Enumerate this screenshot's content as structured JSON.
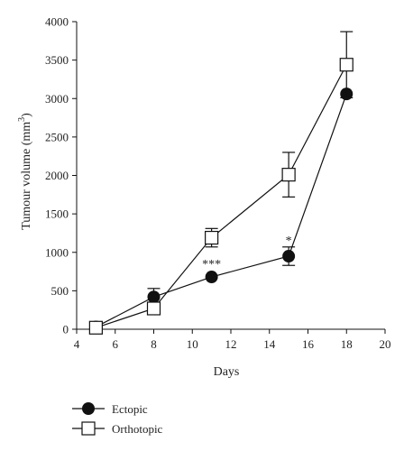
{
  "chart_data": {
    "type": "line",
    "xlabel": "Days",
    "ylabel_main": "Tumour volume (mm",
    "ylabel_sup": "3",
    "ylabel_close": ")",
    "xlim": [
      4,
      20
    ],
    "ylim": [
      0,
      4000
    ],
    "xticks": [
      4,
      6,
      8,
      10,
      12,
      14,
      16,
      18,
      20
    ],
    "yticks": [
      0,
      500,
      1000,
      1500,
      2000,
      2500,
      3000,
      3500,
      4000
    ],
    "grid": false,
    "legend_position": "bottom-left",
    "series": [
      {
        "name": "Ectopic",
        "marker": "filled-circle",
        "color": "#111111",
        "x": [
          5,
          8,
          11,
          15,
          18
        ],
        "y": [
          30,
          420,
          680,
          950,
          3060
        ],
        "err": [
          20,
          110,
          0,
          120,
          0
        ]
      },
      {
        "name": "Orthotopic",
        "marker": "open-square",
        "color": "#111111",
        "x": [
          5,
          8,
          11,
          15,
          18
        ],
        "y": [
          20,
          270,
          1190,
          2010,
          3440
        ],
        "err": [
          0,
          0,
          120,
          290,
          430
        ]
      }
    ],
    "annotations": [
      {
        "text": "***",
        "x": 11,
        "y": 800
      },
      {
        "text": "*",
        "x": 15,
        "y": 1100
      }
    ]
  }
}
